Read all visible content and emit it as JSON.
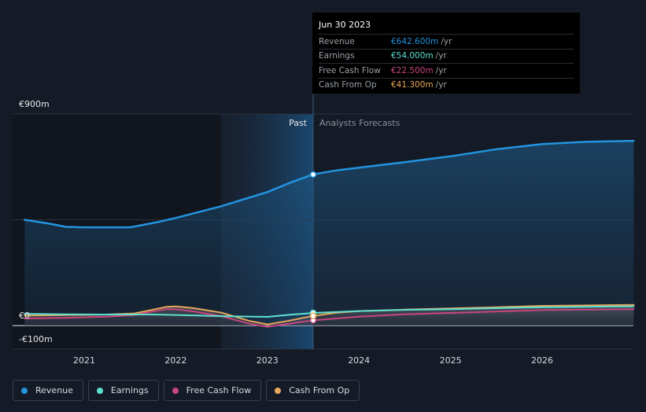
{
  "chart_data": {
    "type": "line",
    "y_tick_labels": [
      "€900m",
      "€0",
      "-€100m"
    ],
    "ylim": [
      -100,
      900
    ],
    "x_tick_labels": [
      "2021",
      "2022",
      "2023",
      "2024",
      "2025",
      "2026"
    ],
    "divider_labels": {
      "past": "Past",
      "forecast": "Analysts Forecasts"
    },
    "grid": true,
    "series": [
      {
        "name": "Revenue",
        "color": "#2394df",
        "area": true,
        "points": [
          [
            2020.35,
            450
          ],
          [
            2020.6,
            435
          ],
          [
            2020.8,
            420
          ],
          [
            2021.0,
            418
          ],
          [
            2021.25,
            418
          ],
          [
            2021.5,
            418
          ],
          [
            2021.6,
            425
          ],
          [
            2021.8,
            440
          ],
          [
            2022.0,
            458
          ],
          [
            2022.2,
            478
          ],
          [
            2022.5,
            508
          ],
          [
            2022.7,
            532
          ],
          [
            2023.0,
            568
          ],
          [
            2023.25,
            608
          ],
          [
            2023.5,
            643
          ],
          [
            2023.75,
            660
          ],
          [
            2024.0,
            672
          ],
          [
            2024.5,
            695
          ],
          [
            2025.0,
            720
          ],
          [
            2025.5,
            750
          ],
          [
            2026.0,
            772
          ],
          [
            2026.5,
            782
          ],
          [
            2027.0,
            786
          ]
        ]
      },
      {
        "name": "Earnings",
        "color": "#5ee0d0",
        "area": false,
        "points": [
          [
            2020.35,
            50
          ],
          [
            2020.8,
            48
          ],
          [
            2021.25,
            47
          ],
          [
            2021.75,
            47
          ],
          [
            2022.0,
            45
          ],
          [
            2022.5,
            40
          ],
          [
            2023.0,
            37
          ],
          [
            2023.25,
            46
          ],
          [
            2023.5,
            54
          ],
          [
            2024.0,
            62
          ],
          [
            2024.5,
            67
          ],
          [
            2025.0,
            70
          ],
          [
            2025.5,
            74
          ],
          [
            2026.0,
            78
          ],
          [
            2027.0,
            82
          ]
        ]
      },
      {
        "name": "Free Cash Flow",
        "color": "#c8467e",
        "area": false,
        "points": [
          [
            2020.35,
            30
          ],
          [
            2020.8,
            33
          ],
          [
            2021.25,
            38
          ],
          [
            2021.55,
            45
          ],
          [
            2021.75,
            60
          ],
          [
            2021.9,
            70
          ],
          [
            2022.0,
            70
          ],
          [
            2022.2,
            60
          ],
          [
            2022.5,
            40
          ],
          [
            2022.8,
            8
          ],
          [
            2023.0,
            -5
          ],
          [
            2023.2,
            6
          ],
          [
            2023.5,
            22.5
          ],
          [
            2023.75,
            30
          ],
          [
            2024.0,
            38
          ],
          [
            2024.5,
            48
          ],
          [
            2025.0,
            54
          ],
          [
            2025.5,
            60
          ],
          [
            2026.0,
            66
          ],
          [
            2027.0,
            70
          ]
        ]
      },
      {
        "name": "Cash From Op",
        "color": "#e8a75a",
        "area": false,
        "points": [
          [
            2020.35,
            42
          ],
          [
            2020.8,
            45
          ],
          [
            2021.25,
            47
          ],
          [
            2021.55,
            52
          ],
          [
            2021.75,
            68
          ],
          [
            2021.9,
            80
          ],
          [
            2022.0,
            82
          ],
          [
            2022.2,
            74
          ],
          [
            2022.5,
            55
          ],
          [
            2022.8,
            20
          ],
          [
            2023.0,
            5
          ],
          [
            2023.2,
            18
          ],
          [
            2023.5,
            41.3
          ],
          [
            2023.75,
            55
          ],
          [
            2024.0,
            62
          ],
          [
            2024.5,
            68
          ],
          [
            2025.0,
            73
          ],
          [
            2025.5,
            78
          ],
          [
            2026.0,
            84
          ],
          [
            2027.0,
            88
          ]
        ]
      }
    ],
    "highlight": {
      "x": 2023.5
    }
  },
  "tooltip": {
    "date": "Jun 30 2023",
    "rows": [
      {
        "label": "Revenue",
        "value": "€642.600m",
        "unit": "/yr",
        "color": "#2394df"
      },
      {
        "label": "Earnings",
        "value": "€54.000m",
        "unit": "/yr",
        "color": "#5ee0d0"
      },
      {
        "label": "Free Cash Flow",
        "value": "€22.500m",
        "unit": "/yr",
        "color": "#c8467e"
      },
      {
        "label": "Cash From Op",
        "value": "€41.300m",
        "unit": "/yr",
        "color": "#e8a75a"
      }
    ]
  },
  "legend": [
    {
      "label": "Revenue",
      "color": "#2394df"
    },
    {
      "label": "Earnings",
      "color": "#5ee0d0"
    },
    {
      "label": "Free Cash Flow",
      "color": "#c8467e"
    },
    {
      "label": "Cash From Op",
      "color": "#e8a75a"
    }
  ]
}
